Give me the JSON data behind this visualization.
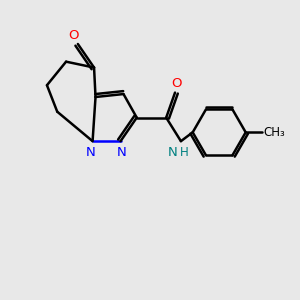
{
  "background_color": "#e8e8e8",
  "bond_color": "#000000",
  "nitrogen_color": "#0000ff",
  "oxygen_color": "#ff0000",
  "nh_color": "#008080",
  "bond_width": 1.8,
  "figsize": [
    3.0,
    3.0
  ],
  "dpi": 100,
  "xlim": [
    0,
    10
  ],
  "ylim": [
    0,
    10
  ]
}
